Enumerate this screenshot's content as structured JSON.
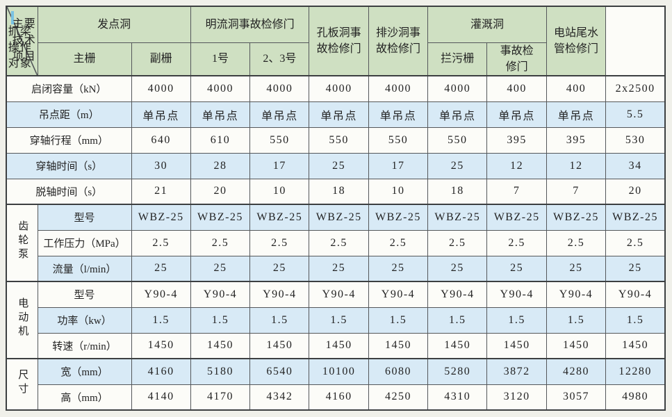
{
  "table": {
    "corner": {
      "top_right": "抓梁操作对象",
      "bottom_left": "主要技术项目"
    },
    "column_groups": [
      {
        "label": "发点洞",
        "children": [
          "主栅",
          "副栅"
        ]
      },
      {
        "label": "明流洞事故检修门",
        "children": [
          "1号",
          "2、3号"
        ]
      },
      {
        "label": "孔板洞事\n故检修门",
        "children": null
      },
      {
        "label": "排沙洞事\n故检修门",
        "children": null
      },
      {
        "label": "灌溉洞",
        "children": [
          "拦污栅",
          "事故检\n修门"
        ]
      },
      {
        "label": "电站尾水\n管检修门",
        "children": null
      }
    ],
    "rows": [
      {
        "group": null,
        "label": "启闭容量（kN）",
        "values": [
          "4000",
          "4000",
          "4000",
          "4000",
          "4000",
          "4000",
          "400",
          "400",
          "2x2500"
        ]
      },
      {
        "group": null,
        "label": "吊点距（m）",
        "values": [
          "单吊点",
          "单吊点",
          "单吊点",
          "单吊点",
          "单吊点",
          "单吊点",
          "单吊点",
          "单吊点",
          "5.5"
        ]
      },
      {
        "group": null,
        "label": "穿轴行程（mm）",
        "values": [
          "640",
          "610",
          "550",
          "550",
          "550",
          "550",
          "395",
          "395",
          "530"
        ]
      },
      {
        "group": null,
        "label": "穿轴时间（s）",
        "values": [
          "30",
          "28",
          "17",
          "25",
          "17",
          "25",
          "12",
          "12",
          "34"
        ]
      },
      {
        "group": null,
        "label": "脱轴时间（s）",
        "values": [
          "21",
          "20",
          "10",
          "18",
          "10",
          "18",
          "7",
          "7",
          "20"
        ]
      },
      {
        "group": {
          "label": "齿轮泵",
          "span": 3
        },
        "label": "型号",
        "values": [
          "WBZ-25",
          "WBZ-25",
          "WBZ-25",
          "WBZ-25",
          "WBZ-25",
          "WBZ-25",
          "WBZ-25",
          "WBZ-25",
          "WBZ-25"
        ]
      },
      {
        "group": null,
        "label": "工作压力（MPa）",
        "values": [
          "2.5",
          "2.5",
          "2.5",
          "2.5",
          "2.5",
          "2.5",
          "2.5",
          "2.5",
          "2.5"
        ]
      },
      {
        "group": null,
        "label": "流量（l/min）",
        "values": [
          "25",
          "25",
          "25",
          "25",
          "25",
          "25",
          "25",
          "25",
          "25"
        ]
      },
      {
        "group": {
          "label": "电动机",
          "span": 3
        },
        "label": "型号",
        "values": [
          "Y90-4",
          "Y90-4",
          "Y90-4",
          "Y90-4",
          "Y90-4",
          "Y90-4",
          "Y90-4",
          "Y90-4",
          "Y90-4"
        ]
      },
      {
        "group": null,
        "label": "功率（kw）",
        "values": [
          "1.5",
          "1.5",
          "1.5",
          "1.5",
          "1.5",
          "1.5",
          "1.5",
          "1.5",
          "1.5"
        ]
      },
      {
        "group": null,
        "label": "转速（r/min）",
        "values": [
          "1450",
          "1450",
          "1450",
          "1450",
          "1450",
          "1450",
          "1450",
          "1450",
          "1450"
        ]
      },
      {
        "group": {
          "label": "尺寸",
          "span": 2
        },
        "label": "宽（mm）",
        "values": [
          "4160",
          "5180",
          "6540",
          "10100",
          "6080",
          "5280",
          "3872",
          "4280",
          "12280"
        ]
      },
      {
        "group": null,
        "label": "高（mm）",
        "values": [
          "4140",
          "4170",
          "4342",
          "4160",
          "4250",
          "4310",
          "3120",
          "3057",
          "4980"
        ]
      }
    ]
  },
  "colors": {
    "header_green": "#cfe0c2",
    "row_blue": "#d8eaf6",
    "row_white": "#fcfcf8",
    "page_background": "#f0f0ea",
    "border": "#54575a",
    "cursor_mark_blue": "#79c3e3"
  }
}
